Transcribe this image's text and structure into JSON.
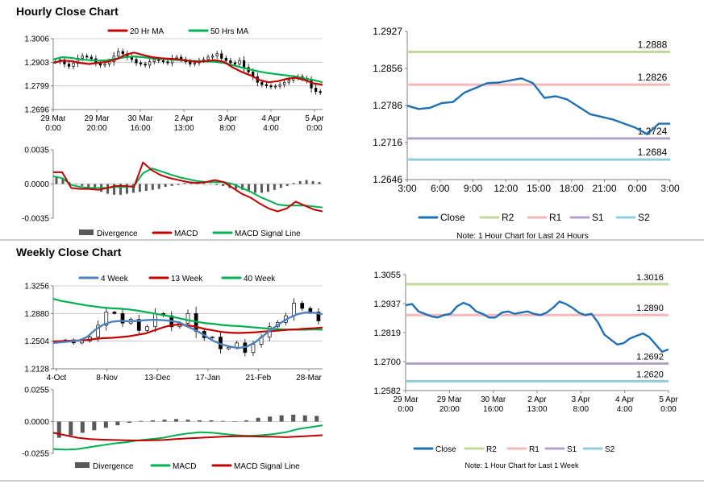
{
  "sections": {
    "hourly_title": "Hourly Close Chart",
    "weekly_title": "Weekly Close Chart"
  },
  "colors": {
    "ma20": "#c00000",
    "ma50": "#00b050",
    "close": "#1f6fb4",
    "r2": "#c3d69b",
    "r1": "#f2b9b9",
    "s1": "#b3a2c7",
    "s2": "#93cddd",
    "divergence": "#595959",
    "wk4": "#4f81bd",
    "wk13": "#c00000",
    "wk40": "#00b050"
  },
  "chart_data": [
    {
      "id": "hourly_price",
      "type": "line",
      "legend": [
        "20 Hr MA",
        "50 Hrs MA"
      ],
      "y_ticks": [
        "1.3006",
        "1.2903",
        "1.2799",
        "1.2696"
      ],
      "ylim": [
        1.2696,
        1.3006
      ],
      "x_ticks": [
        [
          "29 Mar",
          "0:00"
        ],
        [
          "29 Mar",
          "20:00"
        ],
        [
          "30 Mar",
          "16:00"
        ],
        [
          "2 Apr",
          "13:00"
        ],
        [
          "3 Apr",
          "8:00"
        ],
        [
          "4 Apr",
          "4:00"
        ],
        [
          "5 Apr",
          "0:00"
        ]
      ],
      "candles_close": [
        1.2905,
        1.2913,
        1.2895,
        1.2885,
        1.2898,
        1.292,
        1.293,
        1.2925,
        1.2918,
        1.29,
        1.289,
        1.2895,
        1.2905,
        1.293,
        1.295,
        1.294,
        1.2925,
        1.2915,
        1.29,
        1.2895,
        1.289,
        1.2905,
        1.2915,
        1.291,
        1.2905,
        1.29,
        1.292,
        1.2925,
        1.2915,
        1.2905,
        1.2895,
        1.29,
        1.291,
        1.2915,
        1.2925,
        1.293,
        1.294,
        1.292,
        1.291,
        1.29,
        1.2895,
        1.291,
        1.288,
        1.286,
        1.284,
        1.2815,
        1.2805,
        1.28,
        1.2795,
        1.2798,
        1.2805,
        1.2815,
        1.2825,
        1.2835,
        1.284,
        1.2832,
        1.2822,
        1.279,
        1.2775,
        1.277
      ],
      "series": [
        {
          "name": "20 Hr MA",
          "values": [
            1.29,
            1.291,
            1.2908,
            1.29,
            1.2895,
            1.29,
            1.2905,
            1.2915,
            1.2935,
            1.2945,
            1.2935,
            1.2925,
            1.292,
            1.2918,
            1.2915,
            1.291,
            1.2905,
            1.2908,
            1.2912,
            1.2905,
            1.288,
            1.286,
            1.2845,
            1.2825,
            1.2815,
            1.282,
            1.283,
            1.2835,
            1.2825,
            1.281,
            1.2805
          ]
        },
        {
          "name": "50 Hrs MA",
          "values": [
            1.2915,
            1.2925,
            1.2922,
            1.2915,
            1.2912,
            1.291,
            1.2912,
            1.2918,
            1.2925,
            1.2928,
            1.2925,
            1.292,
            1.2918,
            1.2915,
            1.2912,
            1.291,
            1.2908,
            1.2906,
            1.2905,
            1.29,
            1.289,
            1.288,
            1.287,
            1.2862,
            1.2855,
            1.285,
            1.2845,
            1.284,
            1.2832,
            1.2825,
            1.2815
          ]
        }
      ]
    },
    {
      "id": "hourly_macd",
      "type": "bar",
      "legend": [
        "Divergence",
        "MACD",
        "MACD Signal Line"
      ],
      "y_ticks": [
        "0.0035",
        "0.0000",
        "-0.0035"
      ],
      "ylim": [
        -0.0035,
        0.0035
      ],
      "divergence": [
        0.0008,
        0.0006,
        0.0002,
        0.0,
        -0.0002,
        -0.0004,
        -0.0006,
        -0.0008,
        -0.001,
        -0.0011,
        -0.0011,
        -0.001,
        -0.0009,
        -0.0008,
        -0.0007,
        -0.0006,
        -0.0005,
        -0.0003,
        -0.0002,
        -0.0001,
        0.0001,
        0.0002,
        0.0002,
        0.0001,
        0.0,
        -0.0001,
        -0.0002,
        -0.0004,
        -0.0005,
        -0.0006,
        -0.0008,
        -0.0009,
        -0.0009,
        -0.0008,
        -0.0006,
        -0.0004,
        -0.0002,
        0.0001,
        0.0003,
        0.0004,
        0.0003,
        0.0002
      ],
      "series": [
        {
          "name": "MACD",
          "values": [
            0.0012,
            0.0012,
            -0.0004,
            -0.0005,
            -0.0005,
            -0.0006,
            -0.0004,
            -0.0002,
            -0.0002,
            -0.0003,
            0.0022,
            0.0014,
            0.0009,
            0.0006,
            0.0004,
            0.0002,
            0.0001,
            0.0002,
            0.0004,
            0.0002,
            -0.0004,
            -0.001,
            -0.0014,
            -0.002,
            -0.0025,
            -0.0028,
            -0.0025,
            -0.0018,
            -0.0022,
            -0.0026,
            -0.0028
          ]
        },
        {
          "name": "MACD Signal Line",
          "values": [
            0.0008,
            0.0006,
            -0.0001,
            -0.0003,
            -0.0004,
            -0.0004,
            -0.0004,
            -0.0003,
            -0.0003,
            -0.0002,
            0.0011,
            0.0016,
            0.0013,
            0.001,
            0.0007,
            0.0005,
            0.0003,
            0.0002,
            0.0002,
            0.0002,
            0.0,
            -0.0004,
            -0.0008,
            -0.0013,
            -0.0017,
            -0.0021,
            -0.0022,
            -0.0022,
            -0.0022,
            -0.0023,
            -0.0024
          ]
        }
      ]
    },
    {
      "id": "hourly_24h",
      "type": "line",
      "y_ticks": [
        "1.2927",
        "1.2856",
        "1.2786",
        "1.2716",
        "1.2646"
      ],
      "ylim": [
        1.2646,
        1.2927
      ],
      "x_ticks": [
        "3:00",
        "6:00",
        "9:00",
        "12:00",
        "15:00",
        "18:00",
        "21:00",
        "0:00",
        "3:00"
      ],
      "levels": [
        {
          "name": "R2",
          "value": 1.2888,
          "label": "1.2888"
        },
        {
          "name": "R1",
          "value": 1.2826,
          "label": "1.2826"
        },
        {
          "name": "S1",
          "value": 1.2724,
          "label": "1.2724"
        },
        {
          "name": "S2",
          "value": 1.2684,
          "label": "1.2684"
        }
      ],
      "close": [
        1.2786,
        1.278,
        1.2782,
        1.2791,
        1.2793,
        1.2811,
        1.282,
        1.2829,
        1.283,
        1.2834,
        1.2838,
        1.2829,
        1.2801,
        1.2804,
        1.2798,
        1.2784,
        1.277,
        1.2765,
        1.276,
        1.2752,
        1.2744,
        1.2732,
        1.2752,
        1.2752
      ],
      "legend": [
        "Close",
        "R2",
        "R1",
        "S1",
        "S2"
      ],
      "note": "Note: 1 Hour Chart for Last 24 Hours"
    },
    {
      "id": "weekly_price",
      "type": "line",
      "legend": [
        "4 Week",
        "13 Week",
        "40 Week"
      ],
      "y_ticks": [
        "1.3256",
        "1.2880",
        "1.2504",
        "1.2128"
      ],
      "ylim": [
        1.2128,
        1.3256
      ],
      "x_ticks": [
        "4-Oct",
        "8-Nov",
        "13-Dec",
        "17-Jan",
        "21-Feb",
        "28-Mar"
      ],
      "candles_close": [
        1.25,
        1.252,
        1.248,
        1.251,
        1.256,
        1.272,
        1.29,
        1.288,
        1.275,
        1.28,
        1.265,
        1.27,
        1.288,
        1.285,
        1.27,
        1.275,
        1.288,
        1.264,
        1.255,
        1.256,
        1.24,
        1.242,
        1.248,
        1.235,
        1.246,
        1.256,
        1.27,
        1.276,
        1.285,
        1.302,
        1.295,
        1.29,
        1.278
      ],
      "series": [
        {
          "name": "4 Week",
          "values": [
            1.248,
            1.249,
            1.25,
            1.251,
            1.256,
            1.266,
            1.273,
            1.277,
            1.278,
            1.2775,
            1.278,
            1.279,
            1.2795,
            1.279,
            1.278,
            1.276,
            1.27,
            1.265,
            1.258,
            1.251,
            1.246,
            1.243,
            1.241,
            1.243,
            1.249,
            1.258,
            1.267,
            1.275,
            1.282,
            1.287,
            1.2895,
            1.289,
            1.287
          ]
        },
        {
          "name": "13 Week",
          "values": [
            1.25,
            1.2505,
            1.251,
            1.2515,
            1.252,
            1.2535,
            1.2545,
            1.255,
            1.256,
            1.257,
            1.259,
            1.261,
            1.265,
            1.269,
            1.272,
            1.273,
            1.272,
            1.27,
            1.267,
            1.265,
            1.263,
            1.262,
            1.2615,
            1.262,
            1.2625,
            1.2635,
            1.264,
            1.265,
            1.266,
            1.2665,
            1.2675,
            1.268,
            1.269
          ]
        },
        {
          "name": "40 Week",
          "values": [
            1.308,
            1.305,
            1.303,
            1.301,
            1.299,
            1.2975,
            1.296,
            1.295,
            1.2945,
            1.2935,
            1.292,
            1.29,
            1.288,
            1.286,
            1.284,
            1.2815,
            1.279,
            1.277,
            1.275,
            1.274,
            1.2725,
            1.2715,
            1.271,
            1.27,
            1.269,
            1.268,
            1.267,
            1.2665,
            1.266,
            1.266,
            1.266,
            1.2665,
            1.266
          ]
        }
      ]
    },
    {
      "id": "weekly_macd",
      "type": "bar",
      "legend": [
        "Divergence",
        "MACD",
        "MACD Signal Line"
      ],
      "y_ticks": [
        "0.0255",
        "0.0000",
        "-0.0255"
      ],
      "ylim": [
        -0.0255,
        0.0255
      ],
      "divergence": [
        -0.013,
        -0.011,
        -0.009,
        -0.007,
        -0.005,
        -0.003,
        -0.001,
        0.0005,
        0.001,
        0.0015,
        0.002,
        0.0015,
        0.001,
        0.001,
        0.0005,
        0.0002,
        0.001,
        0.003,
        0.004,
        0.005,
        0.0055,
        0.005,
        0.0045
      ],
      "series": [
        {
          "name": "MACD",
          "values": [
            -0.022,
            -0.0225,
            -0.022,
            -0.0205,
            -0.019,
            -0.0175,
            -0.0165,
            -0.015,
            -0.014,
            -0.013,
            -0.011,
            -0.0095,
            -0.0085,
            -0.009,
            -0.01,
            -0.011,
            -0.0115,
            -0.011,
            -0.01,
            -0.0085,
            -0.006,
            -0.0045,
            -0.003
          ]
        },
        {
          "name": "MACD Signal Line",
          "values": [
            -0.009,
            -0.011,
            -0.013,
            -0.014,
            -0.0145,
            -0.0148,
            -0.015,
            -0.0152,
            -0.015,
            -0.0148,
            -0.014,
            -0.0135,
            -0.013,
            -0.0125,
            -0.012,
            -0.0118,
            -0.0118,
            -0.012,
            -0.0122,
            -0.0125,
            -0.012,
            -0.0115,
            -0.011
          ]
        }
      ]
    },
    {
      "id": "weekly_week",
      "type": "line",
      "y_ticks": [
        "1.3055",
        "1.2937",
        "1.2819",
        "1.2700",
        "1.2582"
      ],
      "ylim": [
        1.2582,
        1.3055
      ],
      "x_ticks": [
        [
          "29 Mar",
          "0:00"
        ],
        [
          "29 Mar",
          "20:00"
        ],
        [
          "30 Mar",
          "16:00"
        ],
        [
          "2 Apr",
          "13:00"
        ],
        [
          "3 Apr",
          "8:00"
        ],
        [
          "4 Apr",
          "4:00"
        ],
        [
          "5 Apr",
          "0:00"
        ]
      ],
      "levels": [
        {
          "name": "R2",
          "value": 1.3016,
          "label": "1.3016"
        },
        {
          "name": "R1",
          "value": 1.289,
          "label": "1.2890"
        },
        {
          "name": "S1",
          "value": 1.2692,
          "label": "1.2692"
        },
        {
          "name": "S2",
          "value": 1.262,
          "label": "1.2620"
        }
      ],
      "close": [
        1.293,
        1.2935,
        1.2905,
        1.2895,
        1.2885,
        1.288,
        1.289,
        1.2895,
        1.2925,
        1.294,
        1.293,
        1.2905,
        1.2895,
        1.288,
        1.288,
        1.29,
        1.2905,
        1.2895,
        1.29,
        1.2905,
        1.2895,
        1.289,
        1.29,
        1.292,
        1.2945,
        1.2935,
        1.292,
        1.29,
        1.289,
        1.2895,
        1.286,
        1.281,
        1.279,
        1.277,
        1.2775,
        1.2795,
        1.2805,
        1.2815,
        1.28,
        1.277,
        1.274,
        1.275
      ],
      "legend": [
        "Close",
        "R2",
        "R1",
        "S1",
        "S2"
      ],
      "note": "Note: 1 Hour Chart for Last 1 Week"
    }
  ]
}
